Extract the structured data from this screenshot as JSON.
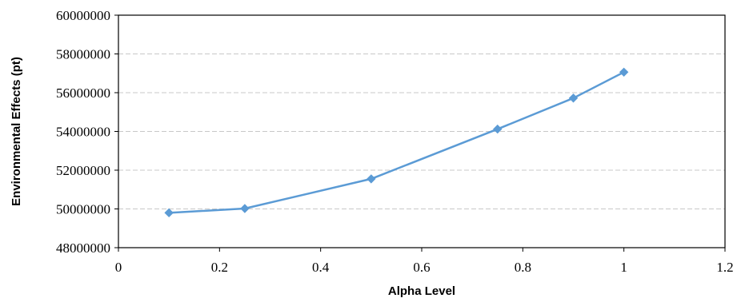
{
  "chart_data": {
    "type": "line",
    "title": "",
    "xlabel": "Alpha Level",
    "ylabel": "Environmental Effects (pt)",
    "xlim": [
      0,
      1.2
    ],
    "ylim": [
      48000000,
      60000000
    ],
    "x_ticks": [
      "0",
      "0.2",
      "0.4",
      "0.6",
      "0.8",
      "1",
      "1.2"
    ],
    "y_ticks": [
      "48000000",
      "50000000",
      "52000000",
      "54000000",
      "56000000",
      "58000000",
      "60000000"
    ],
    "grid": "horizontal dashed",
    "legend": "none",
    "series": [
      {
        "x": [
          0.1,
          0.25,
          0.5,
          0.75,
          0.9,
          1.0
        ],
        "y": [
          49800000,
          50020000,
          51550000,
          54120000,
          55720000,
          57060000
        ],
        "color": "#5b9bd5",
        "marker": "diamond"
      }
    ]
  }
}
